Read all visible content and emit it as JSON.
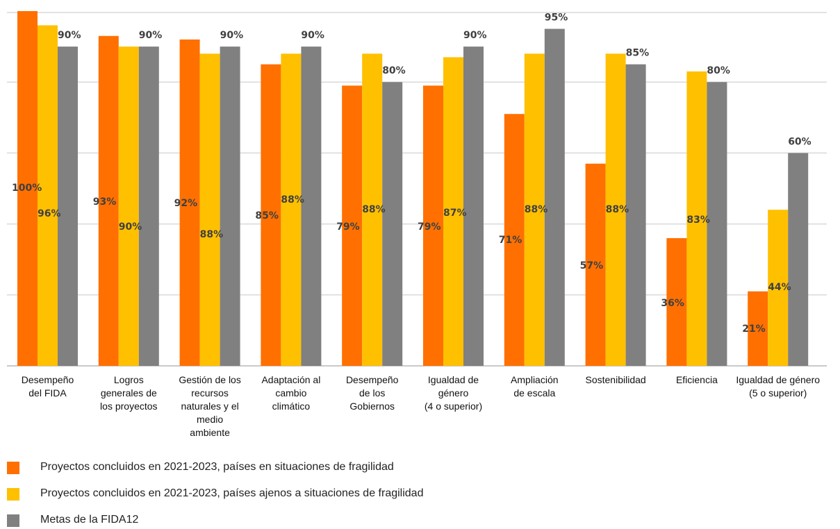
{
  "chart_data": {
    "type": "bar",
    "title": "",
    "xlabel": "",
    "ylabel": "",
    "ylim": [
      0,
      100
    ],
    "grid": true,
    "legend_position": "bottom-left",
    "categories": [
      [
        "Desempeño",
        "del FIDA"
      ],
      [
        "Logros",
        "generales de",
        "los proyectos"
      ],
      [
        "Gestión de los",
        "recursos",
        "naturales y el",
        "medio",
        "ambiente"
      ],
      [
        "Adaptación al",
        "cambio",
        "climático"
      ],
      [
        "Desempeño",
        "de los",
        "Gobiernos"
      ],
      [
        "Igualdad de",
        "género",
        "(4 o superior)"
      ],
      [
        "Ampliación",
        "de escala"
      ],
      [
        "Sostenibilidad"
      ],
      [
        "Eficiencia"
      ],
      [
        "Igualdad de género",
        "(5 o superior)"
      ]
    ],
    "series": [
      {
        "name": "Proyectos concluidos en 2021-2023, países en situaciones de fragilidad",
        "color": "#FF7000",
        "values": [
          100,
          93,
          92,
          85,
          79,
          79,
          71,
          57,
          36,
          21
        ],
        "labels": [
          "100%",
          "93%",
          "92%",
          "85%",
          "79%",
          "79%",
          "71%",
          "57%",
          "36%",
          "21%"
        ]
      },
      {
        "name": "Proyectos concluidos en 2021-2023, países ajenos a situaciones de fragilidad",
        "color": "#FFC000",
        "values": [
          96,
          90,
          88,
          88,
          88,
          87,
          88,
          88,
          83,
          44
        ],
        "labels": [
          "96%",
          "90%",
          "88%",
          "88%",
          "88%",
          "87%",
          "88%",
          "88%",
          "83%",
          "44%"
        ]
      },
      {
        "name": "Metas de la FIDA12",
        "color": "#808080",
        "values": [
          90,
          90,
          90,
          90,
          80,
          90,
          95,
          85,
          80,
          60
        ],
        "labels": [
          "90%",
          "90%",
          "90%",
          "90%",
          "80%",
          "90%",
          "95%",
          "85%",
          "80%",
          "60%"
        ]
      }
    ]
  }
}
